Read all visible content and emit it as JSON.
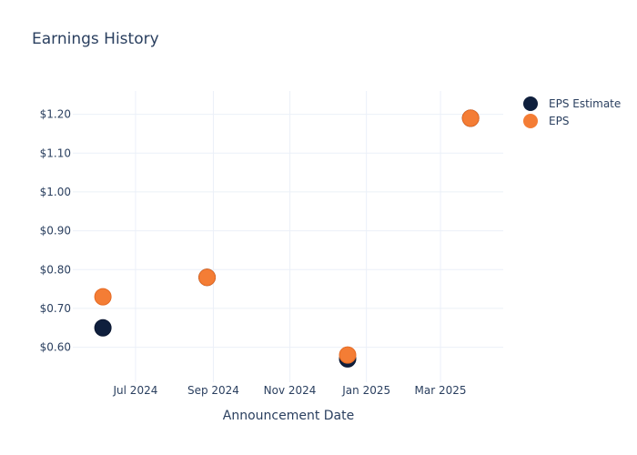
{
  "chart_data": {
    "type": "scatter",
    "title": "Earnings History",
    "xlabel": "Announcement Date",
    "ylabel": "",
    "x_ticks": [
      {
        "date": "2024-07-01",
        "label": "Jul 2024"
      },
      {
        "date": "2024-09-01",
        "label": "Sep 2024"
      },
      {
        "date": "2024-11-01",
        "label": "Nov 2024"
      },
      {
        "date": "2025-01-01",
        "label": "Jan 2025"
      },
      {
        "date": "2025-03-01",
        "label": "Mar 2025"
      }
    ],
    "xlim": [
      "2024-05-12",
      "2025-04-20"
    ],
    "ylim": [
      0.51,
      1.26
    ],
    "y_ticks": [
      {
        "value": 0.6,
        "label": "$0.60"
      },
      {
        "value": 0.7,
        "label": "$0.70"
      },
      {
        "value": 0.8,
        "label": "$0.80"
      },
      {
        "value": 0.9,
        "label": "$0.90"
      },
      {
        "value": 1.0,
        "label": "$1.00"
      },
      {
        "value": 1.1,
        "label": "$1.10"
      },
      {
        "value": 1.2,
        "label": "$1.20"
      }
    ],
    "grid": true,
    "legend": "top-right",
    "series": [
      {
        "name": "EPS Estimate",
        "color": "#0f1f3d",
        "points": [
          {
            "date": "2024-06-05",
            "value": 0.65
          },
          {
            "date": "2024-08-27",
            "value": 0.78
          },
          {
            "date": "2024-12-17",
            "value": 0.57
          },
          {
            "date": "2025-03-25",
            "value": 1.19
          }
        ]
      },
      {
        "name": "EPS",
        "color": "#f47d35",
        "points": [
          {
            "date": "2024-06-05",
            "value": 0.73
          },
          {
            "date": "2024-08-27",
            "value": 0.78
          },
          {
            "date": "2024-12-17",
            "value": 0.58
          },
          {
            "date": "2025-03-25",
            "value": 1.19
          }
        ]
      }
    ]
  }
}
